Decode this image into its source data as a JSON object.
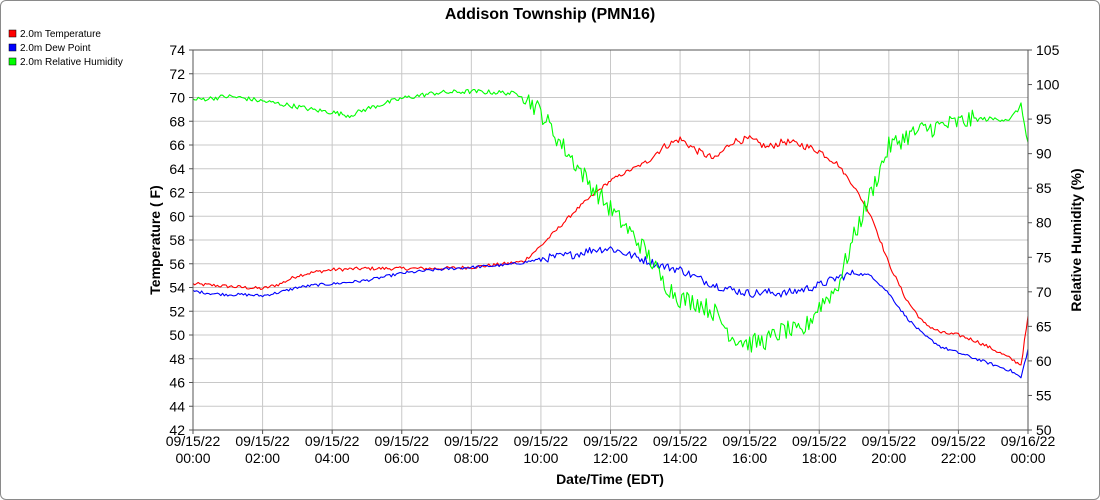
{
  "chart_data": {
    "type": "line",
    "title": "Addison Township (PMN16)",
    "xlabel": "Date/Time (EDT)",
    "ylabel_left": "Temperature ( F)",
    "ylabel_right": "Relative Humidity (%)",
    "y_left_range": [
      42,
      74
    ],
    "y_left_ticks": [
      "42",
      "44",
      "46",
      "48",
      "50",
      "52",
      "54",
      "56",
      "58",
      "60",
      "62",
      "64",
      "66",
      "68",
      "70",
      "72",
      "74"
    ],
    "y_right_range": [
      50,
      105
    ],
    "y_right_ticks": [
      "50",
      "55",
      "60",
      "65",
      "70",
      "75",
      "80",
      "85",
      "90",
      "95",
      "100",
      "105"
    ],
    "x_range_hours": [
      0,
      24
    ],
    "x_ticks": [
      {
        "date": "09/15/22",
        "time": "00:00"
      },
      {
        "date": "09/15/22",
        "time": "02:00"
      },
      {
        "date": "09/15/22",
        "time": "04:00"
      },
      {
        "date": "09/15/22",
        "time": "06:00"
      },
      {
        "date": "09/15/22",
        "time": "08:00"
      },
      {
        "date": "09/15/22",
        "time": "10:00"
      },
      {
        "date": "09/15/22",
        "time": "12:00"
      },
      {
        "date": "09/15/22",
        "time": "14:00"
      },
      {
        "date": "09/15/22",
        "time": "16:00"
      },
      {
        "date": "09/15/22",
        "time": "18:00"
      },
      {
        "date": "09/15/22",
        "time": "20:00"
      },
      {
        "date": "09/15/22",
        "time": "22:00"
      },
      {
        "date": "09/16/22",
        "time": "00:00"
      }
    ],
    "grid": true,
    "legend_position": "top-left",
    "series": [
      {
        "name": "2.0m Temperature",
        "color": "#ff0000",
        "axis": "left",
        "time": [
          "09/15/22 00:00",
          "09/15/22 00:30",
          "09/15/22 01:00",
          "09/15/22 01:30",
          "09/15/22 02:00",
          "09/15/22 02:30",
          "09/15/22 03:00",
          "09/15/22 03:30",
          "09/15/22 04:00",
          "09/15/22 05:00",
          "09/15/22 06:00",
          "09/15/22 07:00",
          "09/15/22 08:00",
          "09/15/22 09:00",
          "09/15/22 09:30",
          "09/15/22 10:00",
          "09/15/22 10:30",
          "09/15/22 11:00",
          "09/15/22 11:30",
          "09/15/22 12:00",
          "09/15/22 12:30",
          "09/15/22 13:00",
          "09/15/22 13:30",
          "09/15/22 14:00",
          "09/15/22 14:30",
          "09/15/22 15:00",
          "09/15/22 15:30",
          "09/15/22 16:00",
          "09/15/22 16:30",
          "09/15/22 17:00",
          "09/15/22 17:30",
          "09/15/22 18:00",
          "09/15/22 18:30",
          "09/15/22 19:00",
          "09/15/22 19:30",
          "09/15/22 20:00",
          "09/15/22 20:30",
          "09/15/22 21:00",
          "09/15/22 21:30",
          "09/15/22 22:00",
          "09/15/22 22:30",
          "09/15/22 23:00",
          "09/15/22 23:30",
          "09/15/22 23:48",
          "09/16/22 00:00"
        ],
        "values": [
          54.3,
          54.2,
          54.1,
          54.0,
          53.9,
          54.3,
          55.0,
          55.3,
          55.5,
          55.6,
          55.6,
          55.6,
          55.7,
          56.0,
          56.2,
          57.5,
          59.0,
          60.5,
          61.8,
          63.0,
          63.8,
          64.5,
          65.8,
          66.5,
          65.5,
          64.8,
          66.3,
          66.5,
          65.8,
          66.3,
          66.0,
          65.5,
          64.5,
          62.5,
          60.0,
          56.0,
          53.0,
          51.0,
          50.2,
          50.0,
          49.5,
          48.8,
          48.0,
          47.5,
          51.5
        ]
      },
      {
        "name": "2.0m Dew Point",
        "color": "#0000ff",
        "axis": "left",
        "time": [
          "09/15/22 00:00",
          "09/15/22 00:30",
          "09/15/22 01:00",
          "09/15/22 01:30",
          "09/15/22 02:00",
          "09/15/22 02:30",
          "09/15/22 03:00",
          "09/15/22 03:30",
          "09/15/22 04:00",
          "09/15/22 05:00",
          "09/15/22 06:00",
          "09/15/22 07:00",
          "09/15/22 08:00",
          "09/15/22 09:00",
          "09/15/22 09:30",
          "09/15/22 10:00",
          "09/15/22 10:30",
          "09/15/22 11:00",
          "09/15/22 11:30",
          "09/15/22 12:00",
          "09/15/22 12:30",
          "09/15/22 13:00",
          "09/15/22 13:30",
          "09/15/22 14:00",
          "09/15/22 14:30",
          "09/15/22 15:00",
          "09/15/22 15:30",
          "09/15/22 16:00",
          "09/15/22 16:30",
          "09/15/22 17:00",
          "09/15/22 17:30",
          "09/15/22 18:00",
          "09/15/22 18:30",
          "09/15/22 19:00",
          "09/15/22 19:30",
          "09/15/22 20:00",
          "09/15/22 20:30",
          "09/15/22 21:00",
          "09/15/22 21:30",
          "09/15/22 22:00",
          "09/15/22 22:30",
          "09/15/22 23:00",
          "09/15/22 23:30",
          "09/15/22 23:48",
          "09/16/22 00:00"
        ],
        "values": [
          53.7,
          53.5,
          53.4,
          53.4,
          53.3,
          53.6,
          54.0,
          54.2,
          54.3,
          54.6,
          55.2,
          55.5,
          55.7,
          55.9,
          56.1,
          56.4,
          56.6,
          56.8,
          57.2,
          57.3,
          56.8,
          56.3,
          55.8,
          55.5,
          54.8,
          54.2,
          53.8,
          53.5,
          53.6,
          53.5,
          53.8,
          54.2,
          54.8,
          55.2,
          55.0,
          53.5,
          51.5,
          50.0,
          49.0,
          48.5,
          48.0,
          47.5,
          47.0,
          46.4,
          48.8
        ]
      },
      {
        "name": "2.0m Relative Humidity",
        "color": "#00ff00",
        "axis": "right",
        "time": [
          "09/15/22 00:00",
          "09/15/22 00:30",
          "09/15/22 01:00",
          "09/15/22 01:30",
          "09/15/22 02:00",
          "09/15/22 02:30",
          "09/15/22 03:00",
          "09/15/22 03:30",
          "09/15/22 04:00",
          "09/15/22 04:30",
          "09/15/22 05:00",
          "09/15/22 06:00",
          "09/15/22 07:00",
          "09/15/22 08:00",
          "09/15/22 09:00",
          "09/15/22 09:30",
          "09/15/22 10:00",
          "09/15/22 10:30",
          "09/15/22 11:00",
          "09/15/22 11:30",
          "09/15/22 12:00",
          "09/15/22 12:30",
          "09/15/22 13:00",
          "09/15/22 13:30",
          "09/15/22 14:00",
          "09/15/22 14:30",
          "09/15/22 15:00",
          "09/15/22 15:30",
          "09/15/22 16:00",
          "09/15/22 16:30",
          "09/15/22 17:00",
          "09/15/22 17:30",
          "09/15/22 18:00",
          "09/15/22 18:30",
          "09/15/22 19:00",
          "09/15/22 19:30",
          "09/15/22 20:00",
          "09/15/22 20:30",
          "09/15/22 21:00",
          "09/15/22 21:30",
          "09/15/22 22:00",
          "09/15/22 22:30",
          "09/15/22 23:00",
          "09/15/22 23:30",
          "09/15/22 23:48",
          "09/16/22 00:00"
        ],
        "values": [
          97.8,
          98.0,
          98.3,
          98.0,
          97.6,
          97.2,
          96.8,
          96.3,
          96.0,
          95.5,
          96.5,
          98.0,
          98.8,
          99.0,
          98.8,
          98.5,
          96.0,
          92.0,
          88.5,
          85.0,
          82.0,
          79.0,
          76.0,
          71.5,
          69.0,
          68.5,
          67.0,
          63.5,
          62.5,
          63.0,
          64.5,
          64.0,
          68.0,
          70.5,
          78.0,
          84.5,
          91.0,
          92.5,
          93.5,
          94.0,
          94.5,
          95.0,
          95.0,
          95.0,
          97.0,
          91.5
        ]
      }
    ]
  }
}
